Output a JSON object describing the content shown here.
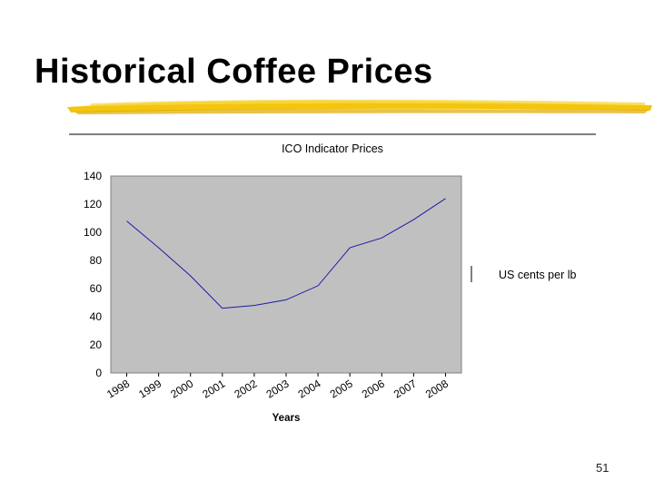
{
  "slide": {
    "title": "Historical Coffee Prices",
    "page_number": "51"
  },
  "colors": {
    "plot_background": "#c0c0c0",
    "series_line": "#1a1aa8",
    "underline_brush": "#f2c200"
  },
  "chart_data": {
    "type": "line",
    "title": "ICO Indicator Prices",
    "xlabel": "Years",
    "ylabel": "",
    "x": [
      "1998",
      "1999",
      "2000",
      "2001",
      "2002",
      "2003",
      "2004",
      "2005",
      "2006",
      "2007",
      "2008"
    ],
    "series": [
      {
        "name": "US cents per lb",
        "values": [
          108,
          89,
          69,
          46,
          48,
          52,
          62,
          89,
          96,
          109,
          124
        ]
      }
    ],
    "ylim": [
      0,
      140
    ],
    "yticks": [
      0,
      20,
      40,
      60,
      80,
      100,
      120,
      140
    ],
    "grid": false,
    "legend": "right"
  }
}
